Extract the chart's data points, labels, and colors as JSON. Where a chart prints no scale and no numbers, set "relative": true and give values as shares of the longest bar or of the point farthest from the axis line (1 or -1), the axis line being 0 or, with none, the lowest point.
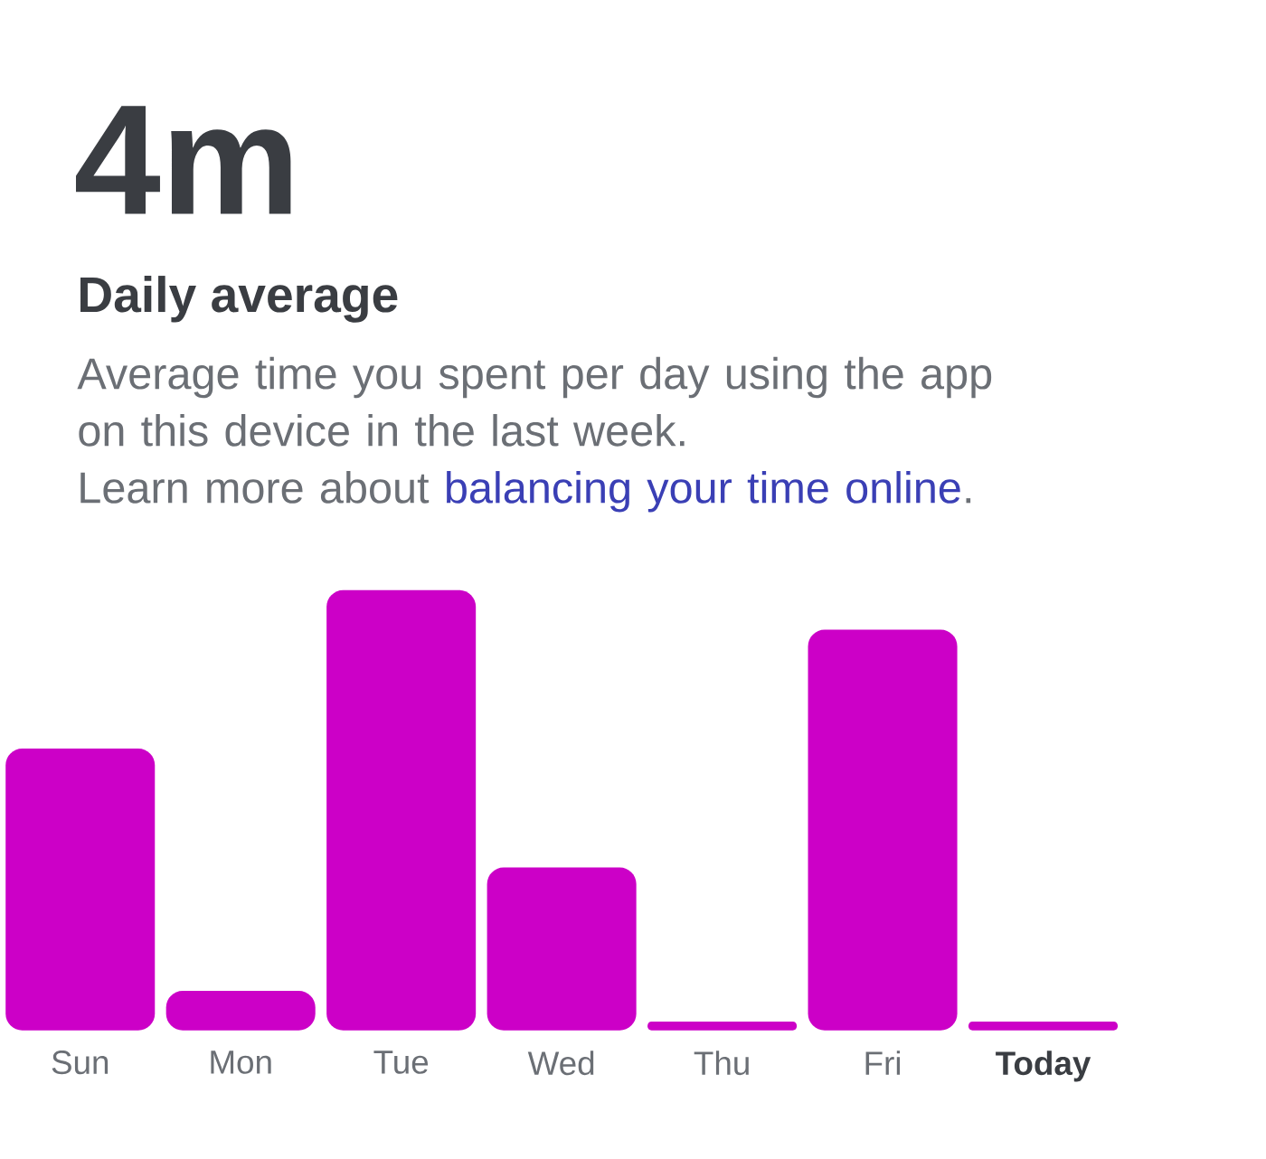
{
  "chart_data": {
    "type": "bar",
    "title": "4m",
    "subtitle": "Daily average",
    "annotations": [
      "Average time you spent per day using the app on this device in the last week.",
      "Learn more about",
      "balancing your time online",
      "."
    ],
    "categories": [
      "Sun",
      "Mon",
      "Tue",
      "Wed",
      "Thu",
      "Fri",
      "Today"
    ],
    "values": [
      0.64,
      0.09,
      1,
      0.37,
      0.02,
      0.91,
      0.02
    ],
    "color": "#cc00c7",
    "relative": true
  }
}
